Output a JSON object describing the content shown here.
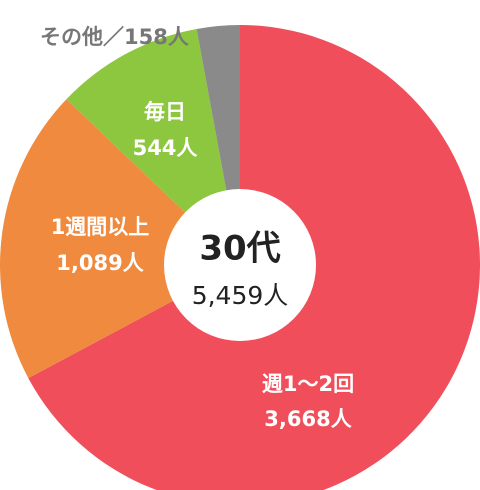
{
  "chart_data": {
    "type": "donut",
    "center_title": "30代",
    "center_subtitle": "5,459人",
    "categories": [
      "週1〜2回",
      "1週間以上",
      "毎日",
      "その他"
    ],
    "values": [
      3668,
      1089,
      544,
      158
    ],
    "value_labels": [
      "3,668人",
      "1,089人",
      "544人",
      "158人"
    ],
    "colors": [
      "#f04e5a",
      "#f08a3e",
      "#8dc63f",
      "#8a8a8a"
    ],
    "separator": "／"
  }
}
